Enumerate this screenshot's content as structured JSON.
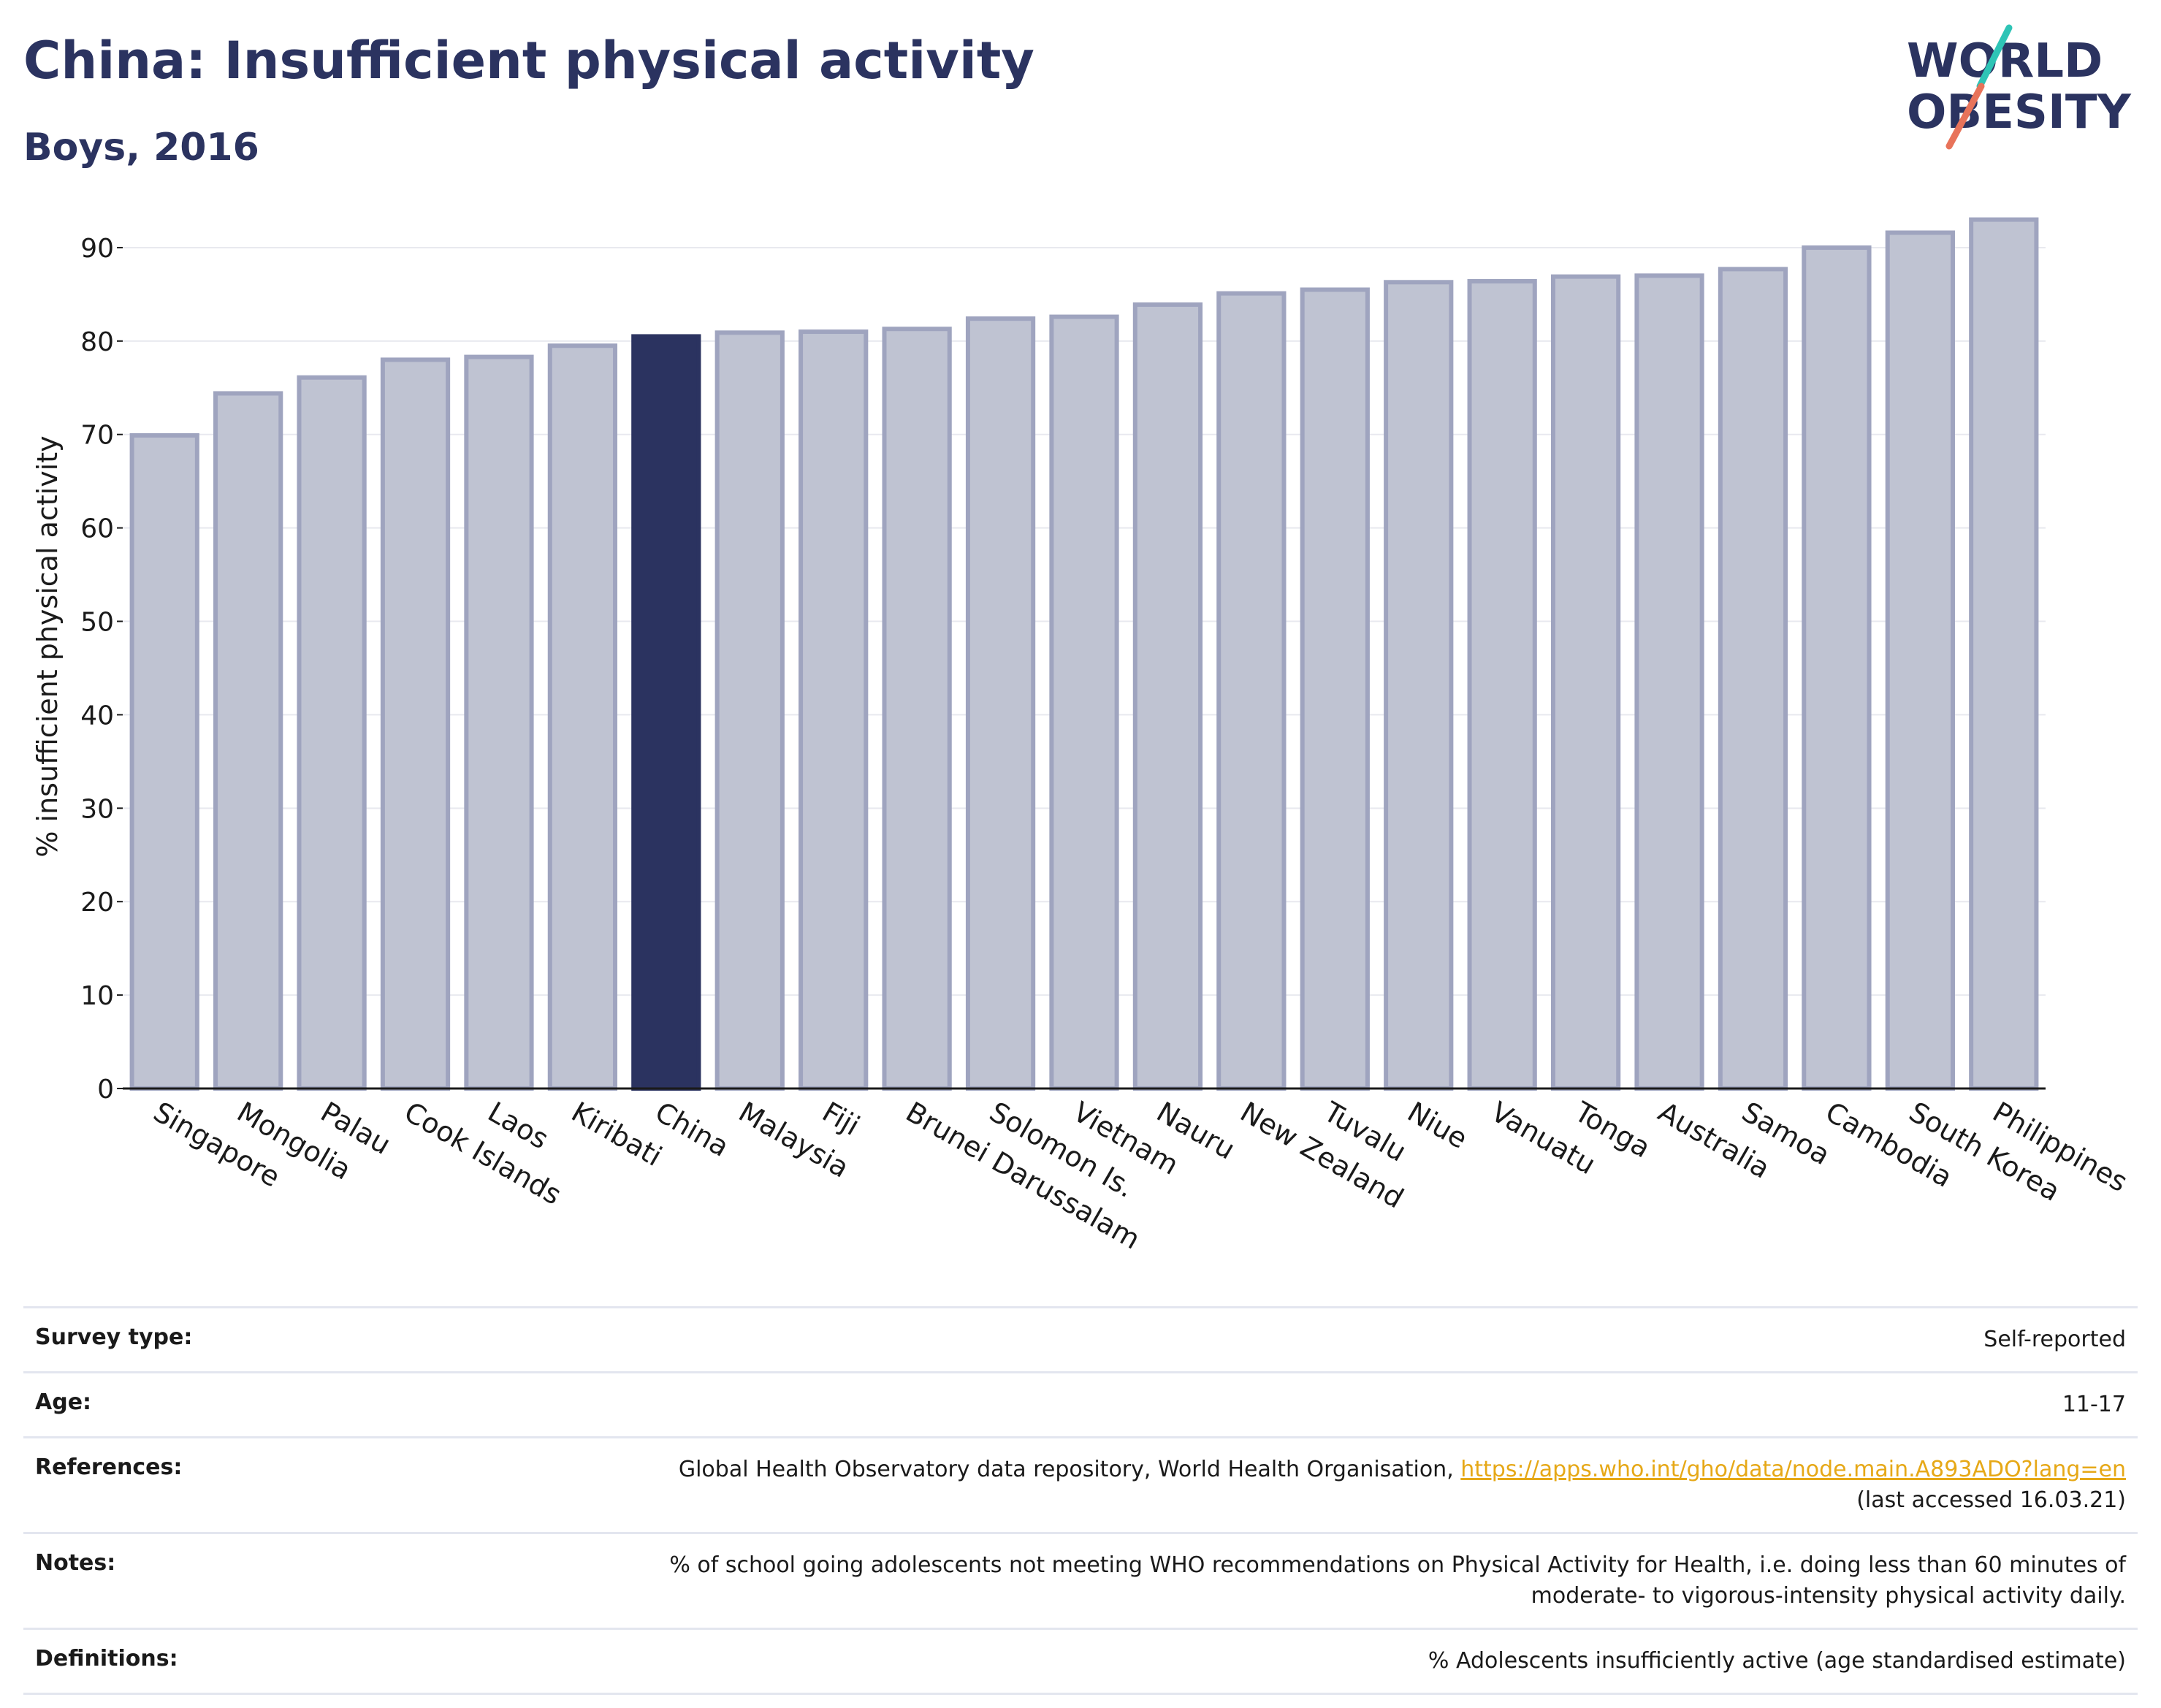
{
  "header": {
    "title": "China: Insufficient physical activity",
    "subtitle": "Boys, 2016",
    "logo_line1": "WORLD",
    "logo_line2": "OBESITY"
  },
  "colors": {
    "highlight": "#2b3360",
    "bar_fill": "#bfc3d2",
    "bar_stroke": "#9fa4bf",
    "logo_teal": "#2ec4b6",
    "logo_coral": "#e8735a",
    "link": "#e6a817"
  },
  "chart_data": {
    "type": "bar",
    "title": "China: Insufficient physical activity",
    "subtitle": "Boys, 2016",
    "ylabel": "% insufficient physical activity",
    "xlabel": "",
    "ylim": [
      0,
      95
    ],
    "yticks": [
      0,
      10,
      20,
      30,
      40,
      50,
      60,
      70,
      80,
      90
    ],
    "grid": true,
    "highlight_category": "China",
    "categories": [
      "Singapore",
      "Mongolia",
      "Palau",
      "Cook Islands",
      "Laos",
      "Kiribati",
      "China",
      "Malaysia",
      "Fiji",
      "Brunei Darussalam",
      "Solomon Is.",
      "Vietnam",
      "Nauru",
      "New Zealand",
      "Tuvalu",
      "Niue",
      "Vanuatu",
      "Tonga",
      "Australia",
      "Samoa",
      "Cambodia",
      "South Korea",
      "Philippines"
    ],
    "values": [
      69.9,
      74.4,
      76.1,
      78.0,
      78.3,
      79.5,
      80.5,
      80.9,
      81.0,
      81.3,
      82.4,
      82.6,
      83.9,
      85.1,
      85.5,
      86.3,
      86.4,
      86.9,
      87.0,
      87.7,
      90.0,
      91.6,
      93.0
    ]
  },
  "meta": {
    "survey_type_label": "Survey type:",
    "survey_type_value": "Self-reported",
    "age_label": "Age:",
    "age_value": "11-17",
    "references_label": "References:",
    "references_text": "Global Health Observatory data repository, World Health Organisation, ",
    "references_link": "https://apps.who.int/gho/data/node.main.A893ADO?lang=en",
    "references_accessed": "(last accessed 16.03.21)",
    "notes_label": "Notes:",
    "notes_line1": "% of school going adolescents not meeting WHO recommendations on Physical Activity for Health, i.e. doing less than 60 minutes of",
    "notes_line2": "moderate- to vigorous-intensity physical activity daily.",
    "definitions_label": "Definitions:",
    "definitions_value": "% Adolescents insufficiently active (age standardised estimate)"
  }
}
